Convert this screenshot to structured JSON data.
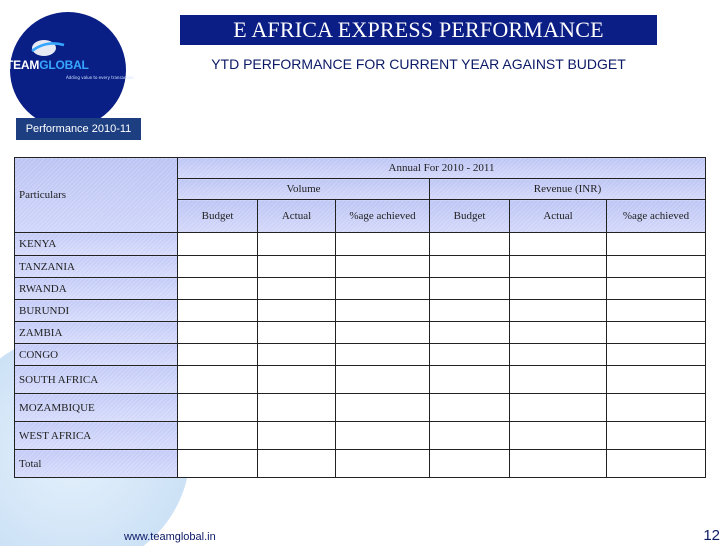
{
  "header": {
    "title": "E AFRICA EXPRESS PERFORMANCE",
    "subtitle": "YTD PERFORMANCE FOR CURRENT YEAR AGAINST BUDGET"
  },
  "logo": {
    "word_part1": "TEAM",
    "word_part2": "GLOBAL",
    "tagline": "Adding value to every transaction"
  },
  "section_tab": "Performance 2010-11",
  "table": {
    "particulars_label": "Particulars",
    "period_header": "Annual For 2010 - 2011",
    "groups": [
      "Volume",
      "Revenue (INR)"
    ],
    "subheaders": [
      "Budget",
      "Actual",
      "%age achieved",
      "Budget",
      "Actual",
      "%age achieved"
    ],
    "rows": [
      "KENYA",
      "TANZANIA",
      "RWANDA",
      "BURUNDI",
      "ZAMBIA",
      "CONGO",
      "SOUTH AFRICA",
      "MOZAMBIQUE",
      "WEST AFRICA",
      "Total"
    ]
  },
  "footer": {
    "url": "www.teamglobal.in",
    "page_number": "12"
  },
  "colors": {
    "title_bar": "#0b1e85",
    "logo_circle": "#0a1f86",
    "section_tab": "#1d3f82",
    "header_fill": "#c3cbf7",
    "deco_blue": "#7fb3e6"
  }
}
